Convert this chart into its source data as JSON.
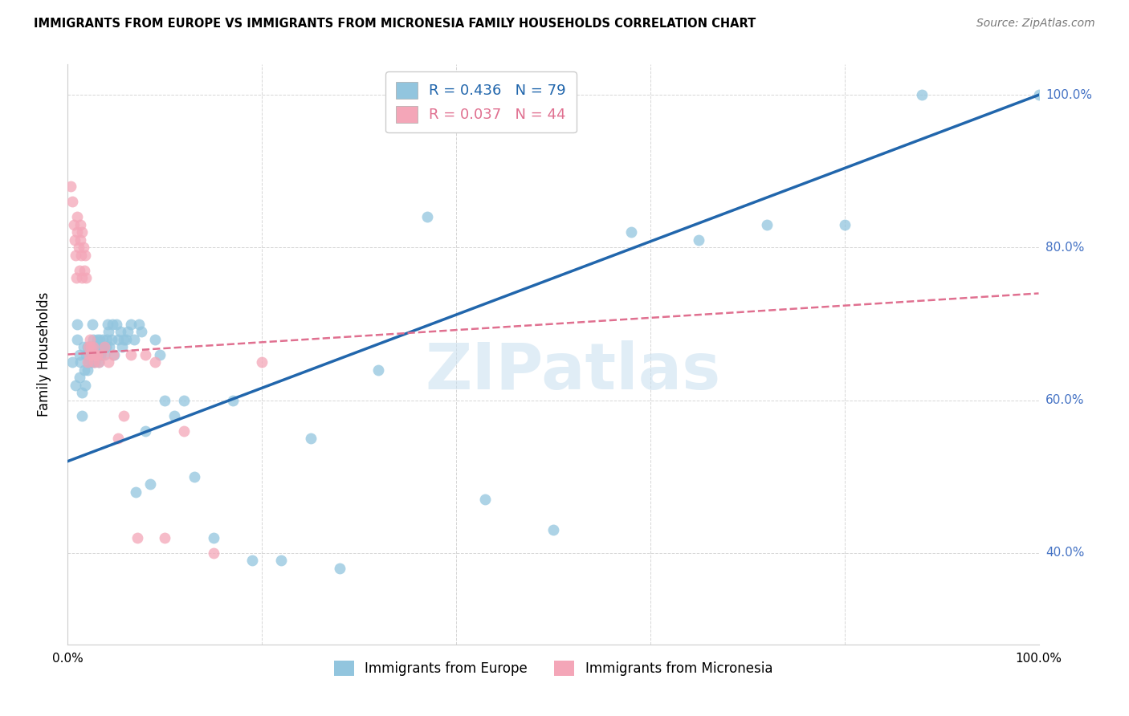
{
  "title": "IMMIGRANTS FROM EUROPE VS IMMIGRANTS FROM MICRONESIA FAMILY HOUSEHOLDS CORRELATION CHART",
  "source": "Source: ZipAtlas.com",
  "ylabel": "Family Households",
  "blue_R": 0.436,
  "blue_N": 79,
  "pink_R": 0.037,
  "pink_N": 44,
  "blue_color": "#92c5de",
  "pink_color": "#f4a6b8",
  "blue_line_color": "#2166ac",
  "pink_line_color": "#e07090",
  "watermark": "ZIPatlas",
  "blue_scatter_x": [
    0.005,
    0.008,
    0.01,
    0.01,
    0.012,
    0.012,
    0.013,
    0.015,
    0.015,
    0.016,
    0.017,
    0.018,
    0.019,
    0.02,
    0.02,
    0.021,
    0.022,
    0.023,
    0.024,
    0.025,
    0.025,
    0.026,
    0.027,
    0.028,
    0.029,
    0.03,
    0.03,
    0.031,
    0.032,
    0.033,
    0.034,
    0.035,
    0.036,
    0.037,
    0.038,
    0.039,
    0.04,
    0.041,
    0.042,
    0.043,
    0.045,
    0.046,
    0.048,
    0.05,
    0.052,
    0.054,
    0.056,
    0.058,
    0.06,
    0.062,
    0.065,
    0.068,
    0.07,
    0.073,
    0.076,
    0.08,
    0.085,
    0.09,
    0.095,
    0.1,
    0.11,
    0.12,
    0.13,
    0.15,
    0.17,
    0.19,
    0.22,
    0.25,
    0.28,
    0.32,
    0.37,
    0.43,
    0.5,
    0.58,
    0.65,
    0.72,
    0.8,
    0.88,
    1.0
  ],
  "blue_scatter_y": [
    0.65,
    0.62,
    0.68,
    0.7,
    0.66,
    0.63,
    0.65,
    0.61,
    0.58,
    0.67,
    0.64,
    0.62,
    0.66,
    0.64,
    0.67,
    0.65,
    0.66,
    0.67,
    0.65,
    0.7,
    0.65,
    0.68,
    0.67,
    0.65,
    0.66,
    0.67,
    0.68,
    0.66,
    0.65,
    0.68,
    0.66,
    0.67,
    0.68,
    0.67,
    0.66,
    0.67,
    0.68,
    0.7,
    0.69,
    0.67,
    0.68,
    0.7,
    0.66,
    0.7,
    0.68,
    0.69,
    0.67,
    0.68,
    0.68,
    0.69,
    0.7,
    0.68,
    0.48,
    0.7,
    0.69,
    0.56,
    0.49,
    0.68,
    0.66,
    0.6,
    0.58,
    0.6,
    0.5,
    0.42,
    0.6,
    0.39,
    0.39,
    0.55,
    0.38,
    0.64,
    0.84,
    0.47,
    0.43,
    0.82,
    0.81,
    0.83,
    0.83,
    1.0,
    1.0
  ],
  "pink_scatter_x": [
    0.003,
    0.005,
    0.006,
    0.007,
    0.008,
    0.009,
    0.01,
    0.01,
    0.011,
    0.012,
    0.013,
    0.013,
    0.014,
    0.015,
    0.015,
    0.016,
    0.017,
    0.018,
    0.019,
    0.02,
    0.021,
    0.022,
    0.023,
    0.024,
    0.025,
    0.026,
    0.027,
    0.028,
    0.03,
    0.032,
    0.035,
    0.038,
    0.042,
    0.047,
    0.052,
    0.058,
    0.065,
    0.072,
    0.08,
    0.09,
    0.1,
    0.12,
    0.15,
    0.2
  ],
  "pink_scatter_y": [
    0.88,
    0.86,
    0.83,
    0.81,
    0.79,
    0.76,
    0.84,
    0.82,
    0.8,
    0.77,
    0.83,
    0.81,
    0.79,
    0.76,
    0.82,
    0.8,
    0.77,
    0.79,
    0.76,
    0.65,
    0.67,
    0.66,
    0.68,
    0.67,
    0.66,
    0.67,
    0.65,
    0.66,
    0.66,
    0.65,
    0.66,
    0.67,
    0.65,
    0.66,
    0.55,
    0.58,
    0.66,
    0.42,
    0.66,
    0.65,
    0.42,
    0.56,
    0.4,
    0.65
  ],
  "xlim": [
    0,
    1.0
  ],
  "ylim": [
    0.28,
    1.04
  ],
  "blue_line_x0": 0.0,
  "blue_line_y0": 0.52,
  "blue_line_x1": 1.0,
  "blue_line_y1": 1.0,
  "pink_line_x0": 0.0,
  "pink_line_y0": 0.66,
  "pink_line_x1": 1.0,
  "pink_line_y1": 0.74
}
